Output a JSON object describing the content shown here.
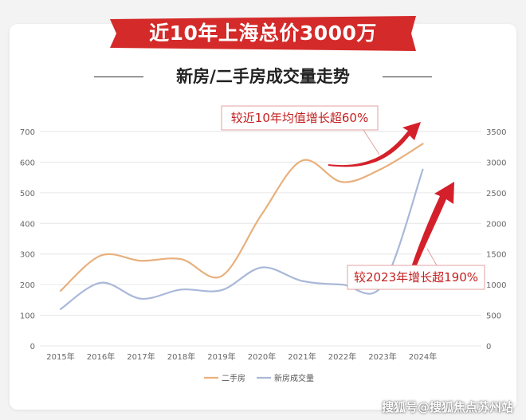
{
  "banner": {
    "title": "近10年上海总价3000万"
  },
  "subtitle": "新房/二手房成交量走势",
  "watermark": "搜狐号@搜狐焦点苏州站",
  "colors": {
    "banner": "#d42a2a",
    "second_hand": "#e8b07c",
    "new_house": "#a9b8d9",
    "arrow": "#d4202a",
    "callout_text": "#c42020",
    "axis_text": "#666666",
    "grid": "#e6e6e6"
  },
  "chart_data": {
    "type": "line",
    "categories": [
      "2015年",
      "2016年",
      "2017年",
      "2018年",
      "2019年",
      "2020年",
      "2021年",
      "2022年",
      "2023年",
      "2024年"
    ],
    "series": [
      {
        "name": "二手房",
        "axis": "left",
        "values": [
          180,
          295,
          278,
          283,
          228,
          430,
          605,
          535,
          580,
          660
        ]
      },
      {
        "name": "新房成交量",
        "axis": "right",
        "values": [
          600,
          1030,
          770,
          920,
          910,
          1280,
          1060,
          1000,
          990,
          2880
        ]
      }
    ],
    "y_left": {
      "min": 0,
      "max": 700,
      "ticks": [
        0,
        100,
        200,
        300,
        400,
        500,
        600,
        700
      ]
    },
    "y_right": {
      "min": 0,
      "max": 3500,
      "ticks": [
        0,
        500,
        1000,
        1500,
        2000,
        2500,
        3000,
        3500
      ]
    },
    "grid": true,
    "legend_position": "bottom",
    "annotations": [
      {
        "text": "较近10年均值增长超60%",
        "series": "二手房"
      },
      {
        "text": "较2023年增长超190%",
        "series": "新房成交量"
      }
    ]
  }
}
